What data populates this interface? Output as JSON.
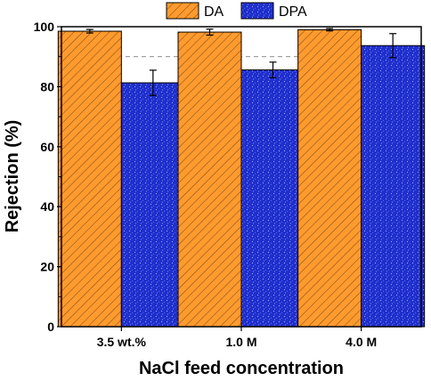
{
  "chart_data": {
    "type": "bar",
    "title": "",
    "xlabel": "NaCl feed concentration",
    "ylabel": "Rejection (%)",
    "categories": [
      "3.5 wt.%",
      "1.0 M",
      "4.0 M"
    ],
    "ylim": [
      0,
      100
    ],
    "yticks": [
      0,
      20,
      40,
      60,
      80,
      100
    ],
    "grid": true,
    "legend_position": "top",
    "series": [
      {
        "name": "DA",
        "values": [
          98.5,
          98.2,
          99.0
        ],
        "errors": [
          0.6,
          1.0,
          0.4
        ],
        "color": "#ff9a2e",
        "pattern": "diagonal-hatch"
      },
      {
        "name": "DPA",
        "values": [
          81.3,
          85.6,
          93.7
        ],
        "errors": [
          4.2,
          2.6,
          4.0
        ],
        "color": "#1f2fcc",
        "pattern": "speckle"
      }
    ]
  }
}
